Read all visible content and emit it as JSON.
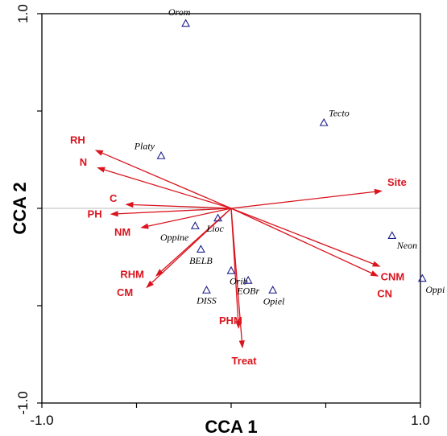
{
  "chart_data": {
    "type": "scatter",
    "title": "",
    "xlabel": "CCA 1",
    "ylabel": "CCA 2",
    "xlim": [
      -1.0,
      1.0
    ],
    "ylim": [
      -1.0,
      1.0
    ],
    "x_tick_labels": [
      "-1.0",
      "1.0"
    ],
    "y_tick_labels": [
      "1.0",
      "-1.0"
    ],
    "grid": false,
    "zero_line_y": 0,
    "colors": {
      "arrows": "#d9141e",
      "species": "#1c1c8c",
      "zero_line": "#bbbbbb"
    },
    "environmental_vectors": [
      {
        "name": "RH",
        "x": -0.72,
        "y": 0.3
      },
      {
        "name": "N",
        "x": -0.71,
        "y": 0.21
      },
      {
        "name": "C",
        "x": -0.56,
        "y": 0.02
      },
      {
        "name": "PH",
        "x": -0.64,
        "y": -0.03
      },
      {
        "name": "NM",
        "x": -0.48,
        "y": -0.1
      },
      {
        "name": "RHM",
        "x": -0.4,
        "y": -0.35
      },
      {
        "name": "CM",
        "x": -0.45,
        "y": -0.41
      },
      {
        "name": "Site",
        "x": 0.8,
        "y": 0.09
      },
      {
        "name": "CNM",
        "x": 0.79,
        "y": -0.3
      },
      {
        "name": "CN",
        "x": 0.78,
        "y": -0.35
      },
      {
        "name": "PHM",
        "x": 0.04,
        "y": -0.62
      },
      {
        "name": "Treat",
        "x": 0.06,
        "y": -0.72
      }
    ],
    "species": [
      {
        "name": "Orom",
        "x": -0.24,
        "y": 0.95
      },
      {
        "name": "Tecto",
        "x": 0.49,
        "y": 0.44
      },
      {
        "name": "Platy",
        "x": -0.37,
        "y": 0.27
      },
      {
        "name": "Lioc",
        "x": -0.07,
        "y": -0.05
      },
      {
        "name": "Oppine",
        "x": -0.19,
        "y": -0.09
      },
      {
        "name": "BELB",
        "x": -0.16,
        "y": -0.21
      },
      {
        "name": "Orib",
        "x": 0.0,
        "y": -0.32
      },
      {
        "name": "EOBr",
        "x": 0.09,
        "y": -0.37
      },
      {
        "name": "DISS",
        "x": -0.13,
        "y": -0.42
      },
      {
        "name": "Opiel",
        "x": 0.22,
        "y": -0.42
      },
      {
        "name": "Neon",
        "x": 0.85,
        "y": -0.14
      },
      {
        "name": "Oppi",
        "x": 1.01,
        "y": -0.36
      }
    ]
  }
}
